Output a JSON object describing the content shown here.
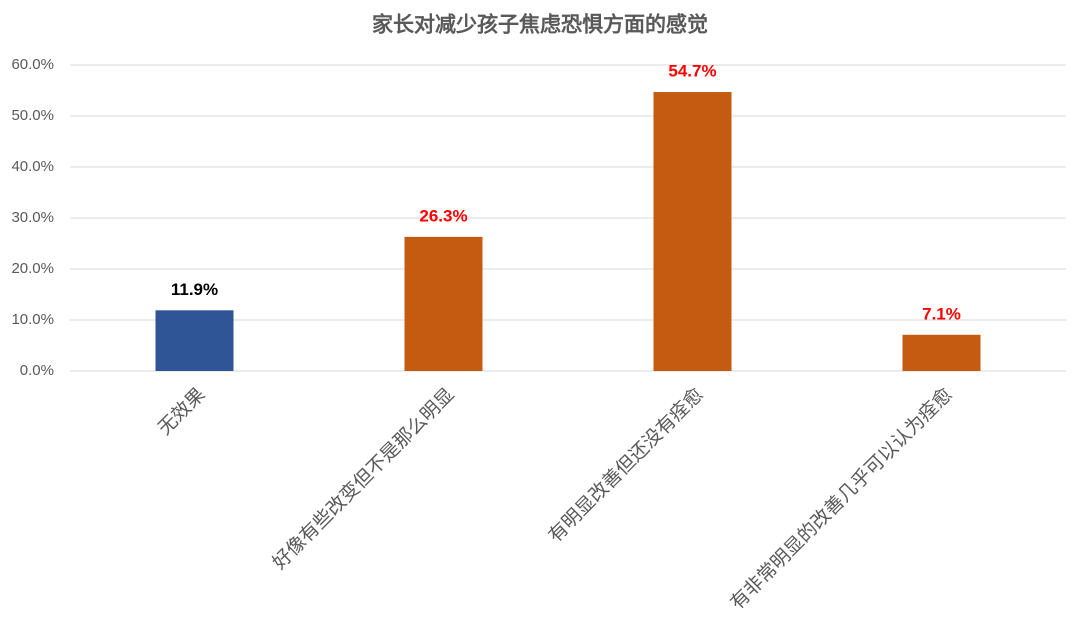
{
  "chart_data": {
    "type": "bar",
    "title": "家长对减少孩子焦虑恐惧方面的感觉",
    "categories": [
      "无效果",
      "好像有些改变但不是那么明显",
      "有明显改善但还没有痊愈",
      "有非常明显的改善几乎可以认为痊愈"
    ],
    "values": [
      11.9,
      26.3,
      54.7,
      7.1
    ],
    "value_labels": [
      "11.9%",
      "26.3%",
      "54.7%",
      "7.1%"
    ],
    "colors": [
      "#2f5597",
      "#c55a11",
      "#c55a11",
      "#c55a11"
    ],
    "value_label_colors": [
      "#000000",
      "#ff0000",
      "#ff0000",
      "#ff0000"
    ],
    "ylim": [
      0,
      60
    ],
    "yticks": [
      {
        "value": 0,
        "label": "0.0%"
      },
      {
        "value": 10,
        "label": "10.0%"
      },
      {
        "value": 20,
        "label": "20.0%"
      },
      {
        "value": 30,
        "label": "30.0%"
      },
      {
        "value": 40,
        "label": "40.0%"
      },
      {
        "value": 50,
        "label": "50.0%"
      },
      {
        "value": 60,
        "label": "60.0%"
      }
    ],
    "grid": true
  }
}
